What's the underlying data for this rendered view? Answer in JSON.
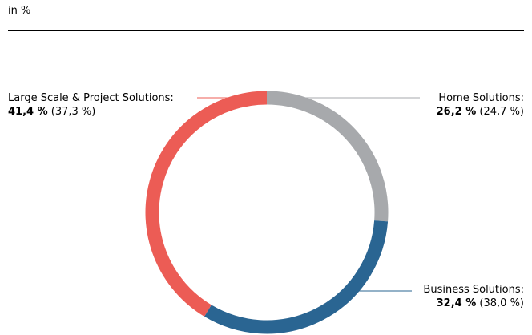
{
  "header": {
    "unit": "in %"
  },
  "chart_data": {
    "type": "pie",
    "variant": "donut",
    "slices": [
      {
        "label": "Home Solutions:",
        "value": 26.2,
        "value_text": "26,2 %",
        "previous_text": "(24,7 %)",
        "color": "#a7a9ac",
        "label_side": "right-top"
      },
      {
        "label": "Business Solutions:",
        "value": 32.4,
        "value_text": "32,4 %",
        "previous_text": "(38,0 %)",
        "color": "#2a6592",
        "label_side": "right-bottom"
      },
      {
        "label": "Large Scale & Project Solutions:",
        "value": 41.4,
        "value_text": "41,4 %",
        "previous_text": "(37,3 %)",
        "color": "#ec5c55",
        "label_side": "left"
      }
    ]
  }
}
